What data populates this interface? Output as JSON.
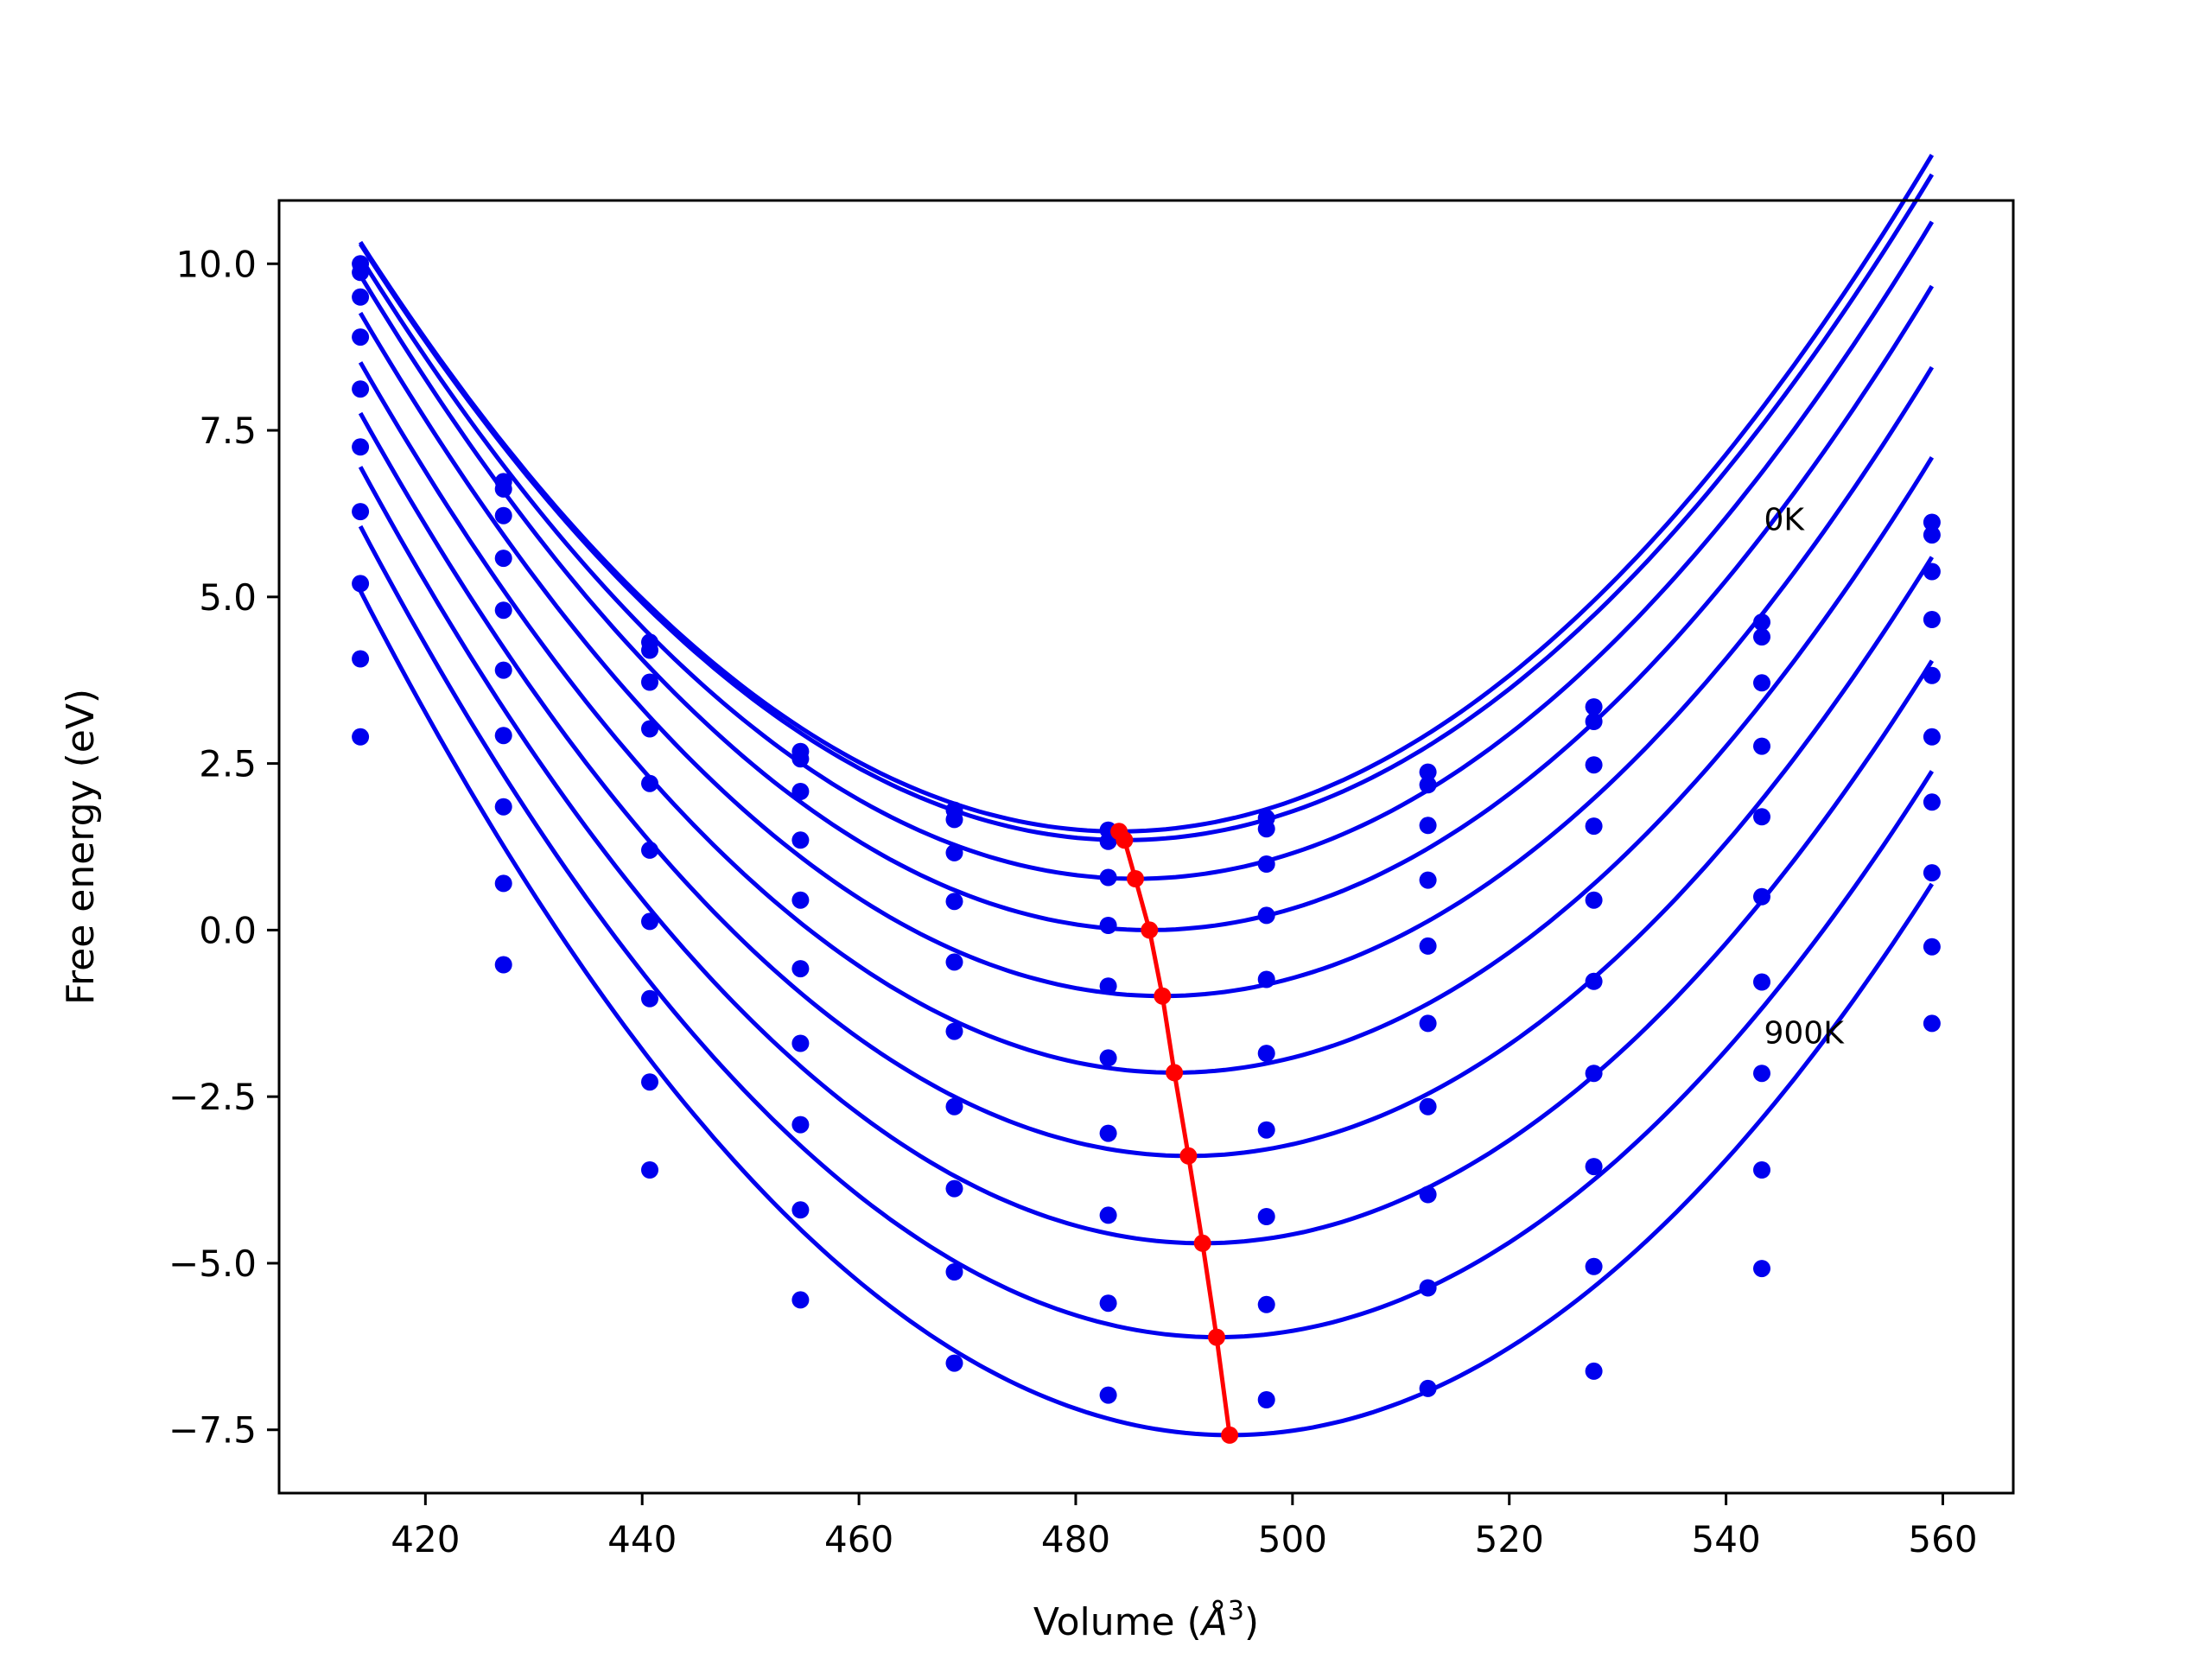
{
  "chart_data": {
    "type": "line",
    "title": "",
    "xlabel_text": "Volume (",
    "xlabel_sym": "Å",
    "xlabel_sup": "3",
    "xlabel_close": ")",
    "ylabel": "Free energy (eV)",
    "xlim": [
      406.5,
      566.5
    ],
    "ylim": [
      -8.45,
      10.95
    ],
    "xticks": [
      420,
      440,
      460,
      480,
      500,
      520,
      540,
      560
    ],
    "xtick_labels": [
      "420",
      "440",
      "460",
      "480",
      "500",
      "520",
      "540",
      "560"
    ],
    "yticks": [
      -7.5,
      -5.0,
      -2.5,
      0.0,
      2.5,
      5.0,
      7.5,
      10.0
    ],
    "ytick_labels": [
      "−7.5",
      "−5.0",
      "−2.5",
      "0.0",
      "2.5",
      "5.0",
      "7.5",
      "10.0"
    ],
    "grid": false,
    "curve_color": "#0000ee",
    "point_color": "#0000ee",
    "min_line_color": "#ff0000",
    "volumes": [
      414,
      427.2,
      440.7,
      454.6,
      468.8,
      483,
      497.6,
      512.5,
      527.8,
      543.3,
      559
    ],
    "series": [
      {
        "fit": {
          "e0": 1.48,
          "v0": 484.0,
          "a": 0.001805
        },
        "points": [
          10.0,
          6.73,
          4.32,
          2.68,
          1.8,
          1.5,
          1.68,
          2.37,
          3.35,
          4.62,
          6.12
        ]
      },
      {
        "fit": {
          "e0": 1.35,
          "v0": 484.5,
          "a": 0.0018
        },
        "points": [
          9.87,
          6.62,
          4.2,
          2.57,
          1.66,
          1.33,
          1.52,
          2.18,
          3.13,
          4.4,
          5.93
        ]
      },
      {
        "fit": {
          "e0": 0.77,
          "v0": 485.5,
          "a": 0.001825
        },
        "points": [
          9.5,
          6.22,
          3.72,
          2.08,
          1.16,
          0.79,
          0.99,
          1.57,
          2.48,
          3.71,
          5.38
        ]
      },
      {
        "fit": {
          "e0": 0.0,
          "v0": 486.8,
          "a": 0.001854
        },
        "points": [
          8.9,
          5.58,
          3.02,
          1.35,
          0.43,
          0.07,
          0.22,
          0.75,
          1.56,
          2.76,
          4.66
        ]
      },
      {
        "fit": {
          "e0": -0.99,
          "v0": 488.0,
          "a": 0.001872
        },
        "points": [
          8.12,
          4.8,
          2.2,
          0.45,
          -0.48,
          -0.84,
          -0.74,
          -0.24,
          0.45,
          1.7,
          3.82
        ]
      },
      {
        "fit": {
          "e0": -2.14,
          "v0": 489.1,
          "a": 0.00189
        },
        "points": [
          7.25,
          3.9,
          1.2,
          -0.58,
          -1.52,
          -1.92,
          -1.85,
          -1.4,
          -0.77,
          0.5,
          2.9
        ]
      },
      {
        "fit": {
          "e0": -3.39,
          "v0": 490.4,
          "a": 0.00191
        },
        "points": [
          6.28,
          2.92,
          0.13,
          -1.7,
          -2.65,
          -3.05,
          -3.0,
          -2.65,
          -2.15,
          -0.78,
          1.92
        ]
      },
      {
        "fit": {
          "e0": -4.7,
          "v0": 491.7,
          "a": 0.00193
        },
        "points": [
          5.2,
          1.85,
          -1.03,
          -2.92,
          -3.88,
          -4.28,
          -4.3,
          -3.97,
          -3.55,
          -2.15,
          0.86
        ]
      },
      {
        "fit": {
          "e0": -6.11,
          "v0": 493.0,
          "a": 0.00195
        },
        "points": [
          4.07,
          0.7,
          -2.28,
          -4.2,
          -5.13,
          -5.6,
          -5.62,
          -5.37,
          -5.05,
          -3.6,
          -0.25
        ]
      },
      {
        "fit": {
          "e0": -7.58,
          "v0": 494.2,
          "a": 0.00197
        },
        "points": [
          2.9,
          -0.52,
          -3.6,
          -5.55,
          -6.5,
          -6.98,
          -7.05,
          -6.88,
          -6.62,
          -5.08,
          -1.4
        ]
      }
    ],
    "minima": {
      "x": [
        484.0,
        484.5,
        485.5,
        486.8,
        488.0,
        489.1,
        490.4,
        491.7,
        493.0,
        494.2
      ],
      "y": [
        1.48,
        1.35,
        0.77,
        0.0,
        -0.99,
        -2.14,
        -3.39,
        -4.7,
        -6.11,
        -7.58
      ]
    },
    "annotations": [
      {
        "text": "0K",
        "x": 543.5,
        "y": 6.0
      },
      {
        "text": "900K",
        "x": 543.5,
        "y": -1.7
      }
    ]
  }
}
